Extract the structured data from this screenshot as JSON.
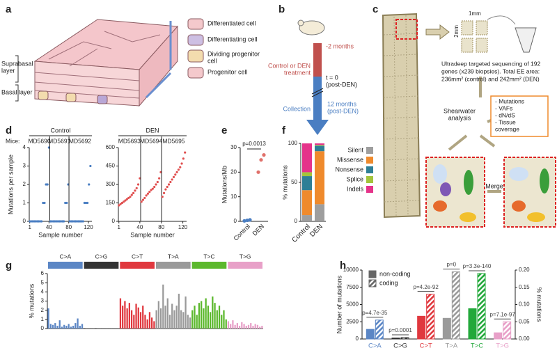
{
  "panel_letters": [
    "a",
    "b",
    "c",
    "d",
    "e",
    "f",
    "g",
    "h"
  ],
  "diagram_a": {
    "cell_types": [
      [
        "Differentiated cell"
      ],
      [
        "Differentiating cell"
      ],
      [
        "Dividing progenitor",
        "cell"
      ],
      [
        "Progenitor cell"
      ]
    ],
    "suprabasal": [
      "Suprabasal",
      "layer"
    ],
    "basal": "Basal layer"
  },
  "diagram_b": {
    "start": "-2 months",
    "treatment": [
      "Control or DEN",
      "treatment"
    ],
    "t0": [
      "t = 0",
      "(post-DEN)"
    ],
    "collection": "Collection",
    "end": [
      "12 months",
      "(post-DEN)"
    ]
  },
  "diagram_c": {
    "width_label": "1mm",
    "height_label": "2mm",
    "sequencing": [
      "Ultradeep targeted sequencing of 192",
      "genes (x239 biopsies). Total EE area:",
      "236mm² (control) and 242mm² (DEN)"
    ],
    "analysis": [
      "Shearwater",
      "analysis"
    ],
    "outputs": [
      "- Mutations",
      "- VAFs",
      "- dN/dS",
      "- Tissue",
      "  coverage"
    ],
    "merge": "Merge"
  },
  "chart_data": [
    {
      "type": "scatter",
      "title": "Control",
      "mice_label": "Mice:",
      "y_label": "Mutations per sample",
      "x_label": "Sample number",
      "xlim": [
        0,
        127
      ],
      "xticks": [
        1,
        40,
        80,
        120
      ],
      "ylim": [
        0,
        4
      ],
      "yticks": [
        0,
        1,
        2,
        3,
        4
      ],
      "series": [
        {
          "name": "MD5690",
          "color": "#4a7ec2",
          "x": [
            1,
            4,
            7,
            10,
            13,
            16,
            19,
            22,
            25,
            28,
            31,
            34,
            37,
            40
          ],
          "values": [
            0,
            0,
            0,
            0,
            0,
            0,
            0,
            0,
            0,
            1,
            1,
            2,
            2,
            4
          ]
        },
        {
          "name": "MD5691",
          "color": "#4a7ec2",
          "x": [
            43,
            46,
            49,
            52,
            55,
            58,
            61,
            64,
            67,
            70,
            73,
            76,
            79
          ],
          "values": [
            0,
            0,
            0,
            0,
            0,
            0,
            0,
            0,
            0,
            0,
            1,
            1,
            2
          ]
        },
        {
          "name": "MD5692",
          "color": "#4a7ec2",
          "x": [
            82,
            85,
            88,
            91,
            94,
            97,
            100,
            103,
            106,
            109,
            112,
            115,
            118,
            121,
            124
          ],
          "values": [
            0,
            0,
            0,
            0,
            0,
            0,
            0,
            0,
            0,
            0,
            1,
            1,
            1,
            2,
            3
          ]
        }
      ]
    },
    {
      "type": "scatter",
      "title": "DEN",
      "x_label": "Sample number",
      "xlim": [
        0,
        127
      ],
      "xticks": [
        1,
        40,
        80,
        120
      ],
      "ylim": [
        0,
        600
      ],
      "yticks": [
        0,
        150,
        300,
        450,
        600
      ],
      "series": [
        {
          "name": "MD5693",
          "color": "#e05050",
          "x": [
            1,
            4,
            7,
            10,
            13,
            16,
            19,
            22,
            25,
            28,
            31,
            34,
            37,
            40
          ],
          "values": [
            130,
            140,
            150,
            160,
            170,
            180,
            190,
            200,
            215,
            230,
            250,
            270,
            300,
            350
          ]
        },
        {
          "name": "MD5694",
          "color": "#e05050",
          "x": [
            43,
            46,
            49,
            52,
            55,
            58,
            61,
            64,
            67,
            70,
            73,
            76,
            79
          ],
          "values": [
            160,
            175,
            190,
            210,
            225,
            240,
            255,
            265,
            280,
            300,
            320,
            350,
            400
          ]
        },
        {
          "name": "MD5695",
          "color": "#e05050",
          "x": [
            82,
            85,
            88,
            91,
            94,
            97,
            100,
            103,
            106,
            109,
            112,
            115,
            118,
            121,
            124
          ],
          "values": [
            200,
            230,
            260,
            280,
            300,
            320,
            340,
            360,
            380,
            400,
            420,
            440,
            470,
            510,
            560
          ]
        }
      ]
    },
    {
      "type": "strip",
      "y_label": "Mutations/Mb",
      "annotation": "p=0.0013",
      "categories": [
        "Control",
        "DEN"
      ],
      "colors": [
        "#4a7ec2",
        "#e0706a"
      ],
      "values": [
        [
          0.2,
          0.4,
          0.6
        ],
        [
          20,
          25,
          27
        ]
      ],
      "ylim": [
        0,
        30
      ],
      "yticks": [
        0,
        10,
        20,
        30
      ]
    },
    {
      "type": "stacked_bar",
      "y_label": "% mutations",
      "categories": [
        "Control",
        "DEN"
      ],
      "ylim": [
        0,
        100
      ],
      "yticks": [
        0,
        50,
        100
      ],
      "series": [
        {
          "name": "Silent",
          "color": "#9e9e9e",
          "values": [
            8,
            22
          ]
        },
        {
          "name": "Missense",
          "color": "#ef8a2c",
          "values": [
            32,
            68
          ]
        },
        {
          "name": "Nonsense",
          "color": "#2e7f96",
          "values": [
            18,
            7
          ]
        },
        {
          "name": "Splice",
          "color": "#a3c43b",
          "values": [
            5,
            1
          ]
        },
        {
          "name": "Indels",
          "color": "#e5338a",
          "values": [
            37,
            2
          ]
        }
      ]
    },
    {
      "type": "bar",
      "y_label": "% mutations",
      "ylim": [
        0,
        6
      ],
      "yticks": [
        0,
        1,
        2,
        3,
        4,
        5,
        6
      ],
      "groups": [
        {
          "name": "C>A",
          "color": "#5b86c5"
        },
        {
          "name": "C>G",
          "color": "#333333"
        },
        {
          "name": "C>T",
          "color": "#e0383e"
        },
        {
          "name": "T>A",
          "color": "#9a9a9a"
        },
        {
          "name": "T>C",
          "color": "#5cb82d"
        },
        {
          "name": "T>G",
          "color": "#e8a0c8"
        }
      ],
      "values": [
        2.2,
        0.5,
        0.4,
        0.6,
        0.3,
        0.9,
        0.2,
        0.4,
        0.3,
        0.5,
        0.2,
        0.3,
        0.6,
        1.1,
        0.3,
        0.5,
        0.05,
        0.03,
        0.02,
        0.04,
        0.03,
        0.05,
        0.02,
        0.03,
        0.02,
        0.04,
        0.03,
        0.02,
        0.03,
        0.04,
        0.02,
        0.03,
        3.3,
        2.5,
        3.0,
        2.2,
        2.8,
        2.0,
        1.5,
        2.7,
        2.3,
        1.8,
        2.5,
        1.5,
        1.0,
        1.8,
        1.2,
        0.8,
        2.0,
        3.0,
        2.2,
        4.8,
        2.5,
        3.3,
        1.5,
        2.7,
        2.0,
        2.5,
        3.8,
        2.0,
        1.8,
        3.5,
        1.5,
        1.2,
        2.0,
        2.5,
        1.5,
        2.8,
        3.0,
        2.2,
        3.3,
        2.5,
        1.8,
        3.5,
        2.8,
        2.0,
        2.5,
        1.5,
        2.0,
        1.0,
        0.8,
        0.5,
        0.9,
        0.4,
        0.6,
        0.3,
        0.7,
        0.5,
        0.3,
        0.4,
        0.6,
        0.3,
        0.5,
        0.4,
        0.2,
        0.3
      ]
    },
    {
      "type": "grouped_bar",
      "y_label": "Number of mutations",
      "y2_label": "% mutations",
      "categories": [
        "C>A",
        "C>G",
        "C>T",
        "T>A",
        "T>C",
        "T>G"
      ],
      "category_colors": [
        "#5b86c5",
        "#333333",
        "#e0383e",
        "#9a9a9a",
        "#22a83a",
        "#e8a0c8"
      ],
      "p_values": [
        "p=4.7e-35",
        "p=0.0001",
        "p=4.2e-92",
        "p=0",
        "p=3.3e-140",
        "p=7.1e-97"
      ],
      "ylim": [
        0,
        10000
      ],
      "yticks": [
        0,
        2500,
        5000,
        7500,
        10000
      ],
      "y2lim": [
        0,
        0.2
      ],
      "y2ticks": [
        {
          "value": 0,
          "label": "0.00"
        },
        {
          "value": 0.05,
          "label": "0.05"
        },
        {
          "value": 0.1,
          "label": "0.10"
        },
        {
          "value": 0.15,
          "label": "0.15"
        },
        {
          "value": 0.2,
          "label": "0.20"
        }
      ],
      "series": [
        {
          "name": "non-coding",
          "color": "#666666",
          "values": [
            1400,
            150,
            3300,
            3000,
            4400,
            900
          ]
        },
        {
          "name": "coding",
          "color": "#666666",
          "axis": "y2",
          "values": [
            0.055,
            0.004,
            0.13,
            0.195,
            0.19,
            0.05
          ]
        }
      ]
    }
  ]
}
